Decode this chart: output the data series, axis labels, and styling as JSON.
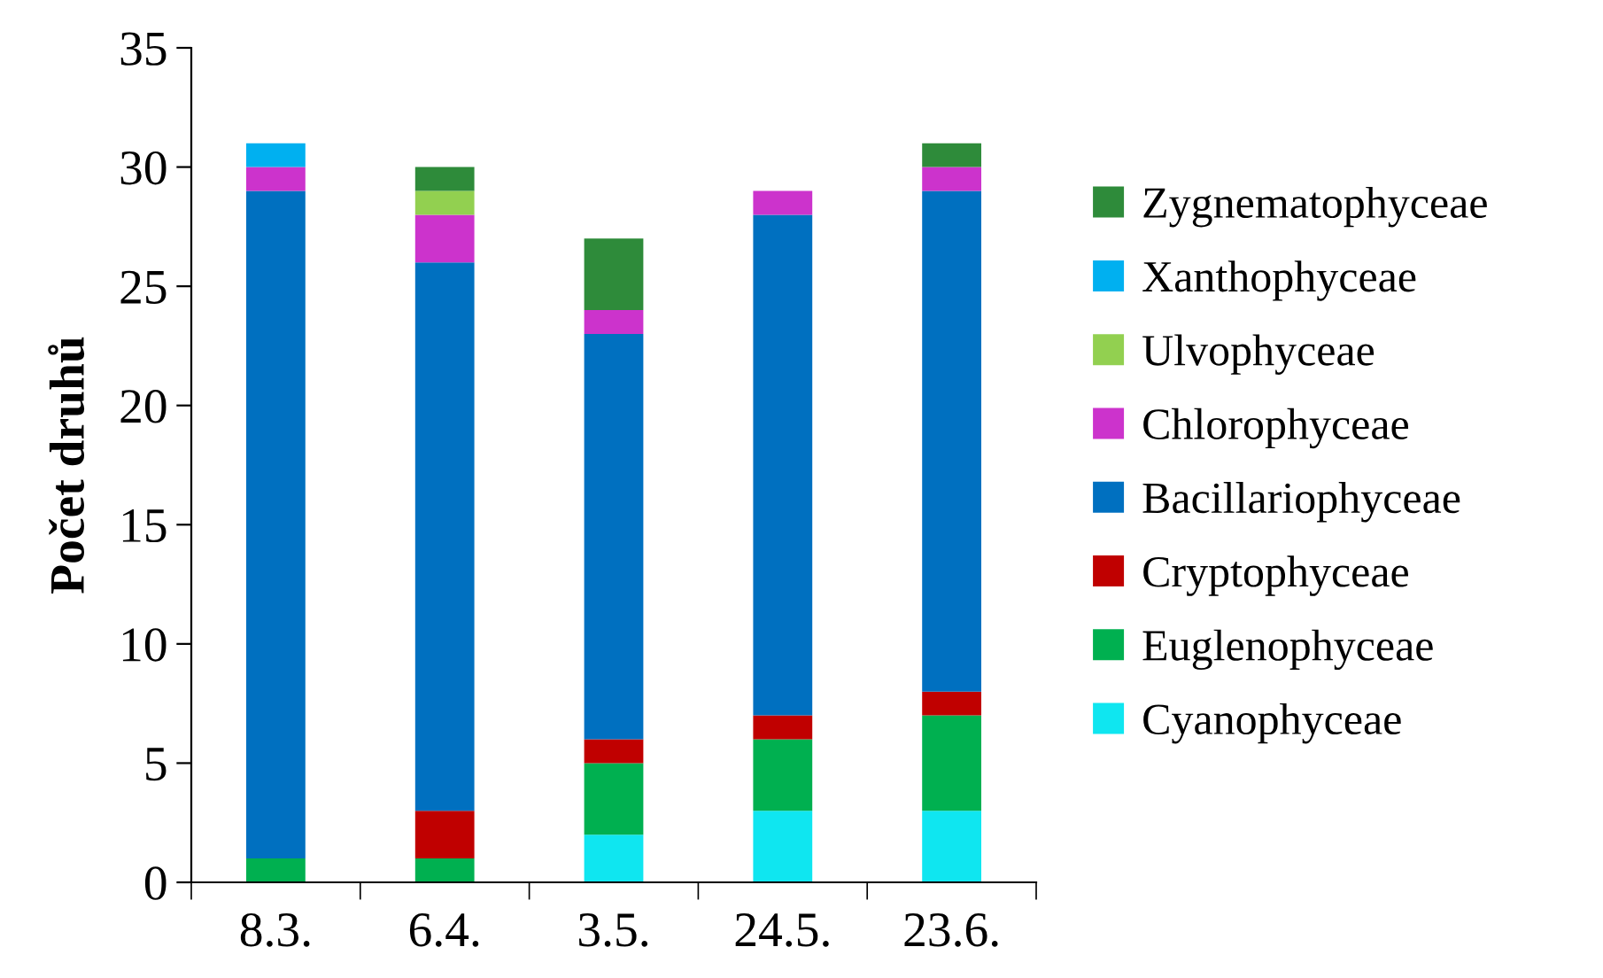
{
  "chart_data": {
    "type": "bar",
    "stacked": true,
    "ylabel": "Počet druhů",
    "categories": [
      "8.3.",
      "6.4.",
      "3.5.",
      "24.5.",
      "23.6."
    ],
    "series": [
      {
        "name": "Cyanophyceae",
        "color": "#0fe6f0",
        "values": [
          0,
          0,
          2,
          3,
          3
        ]
      },
      {
        "name": "Euglenophyceae",
        "color": "#00b050",
        "values": [
          1,
          1,
          3,
          3,
          4
        ]
      },
      {
        "name": "Cryptophyceae",
        "color": "#c00000",
        "values": [
          0,
          2,
          1,
          1,
          1
        ]
      },
      {
        "name": "Bacillariophyceae",
        "color": "#0070c0",
        "values": [
          28,
          23,
          17,
          21,
          21
        ]
      },
      {
        "name": "Chlorophyceae",
        "color": "#cc33cc",
        "values": [
          1,
          2,
          1,
          1,
          1
        ]
      },
      {
        "name": "Ulvophyceae",
        "color": "#92d050",
        "values": [
          0,
          1,
          0,
          0,
          0
        ]
      },
      {
        "name": "Xanthophyceae",
        "color": "#00b0f0",
        "values": [
          1,
          0,
          0,
          0,
          0
        ]
      },
      {
        "name": "Zygnematophyceae",
        "color": "#2e8b3a",
        "values": [
          0,
          1,
          3,
          0,
          1
        ]
      }
    ],
    "ylim": [
      0,
      35
    ],
    "yticks": [
      0,
      5,
      10,
      15,
      20,
      25,
      30,
      35
    ],
    "legend": "right"
  }
}
